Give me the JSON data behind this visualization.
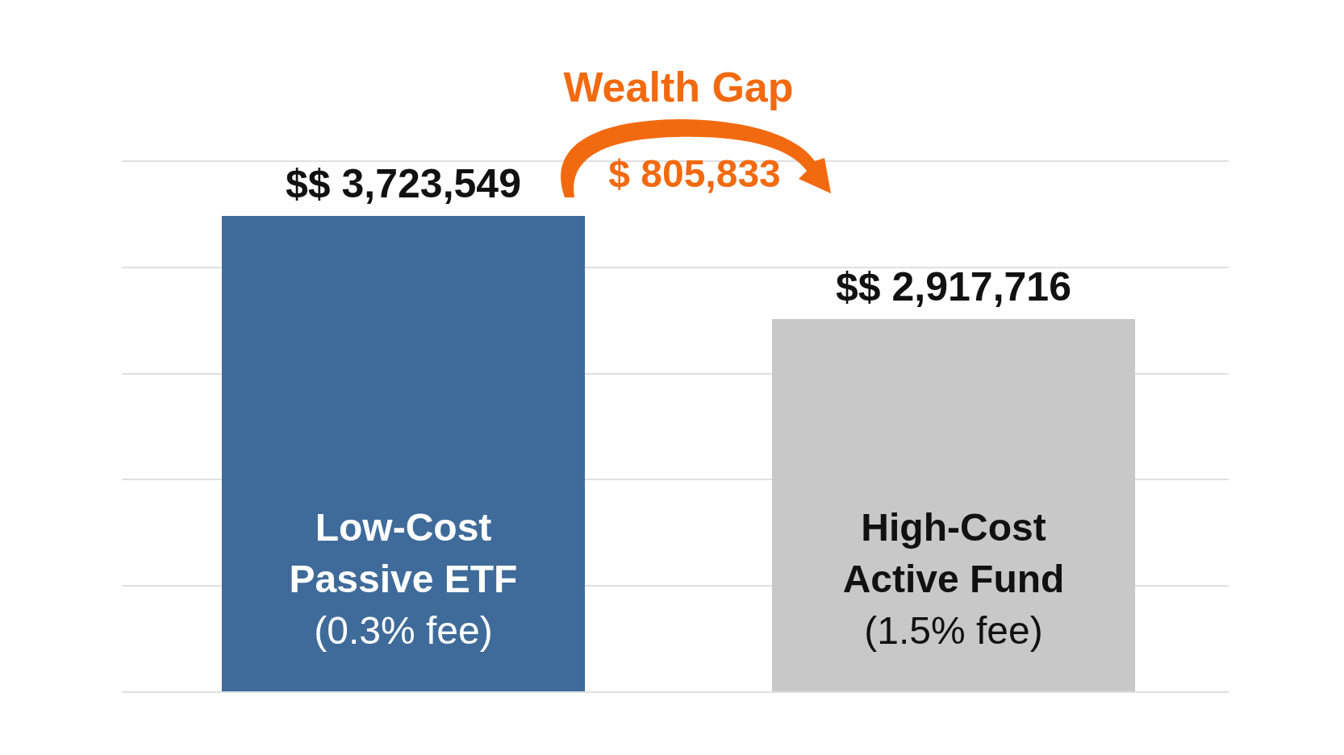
{
  "chart_data": {
    "type": "bar",
    "categories": [
      "Low-Cost Passive ETF (0.3% fee)",
      "High-Cost Active Fund (1.5% fee)"
    ],
    "values": [
      3723549,
      2917716
    ],
    "value_labels": [
      "$$ 3,723,549",
      "$$ 2,917,716"
    ],
    "colors": [
      "#3f6b9a",
      "#c8c8c8"
    ],
    "annotations": [
      "Wealth Gap",
      "$ 805,833"
    ],
    "grid": "y",
    "tick_labels": false,
    "legend": false
  }
}
